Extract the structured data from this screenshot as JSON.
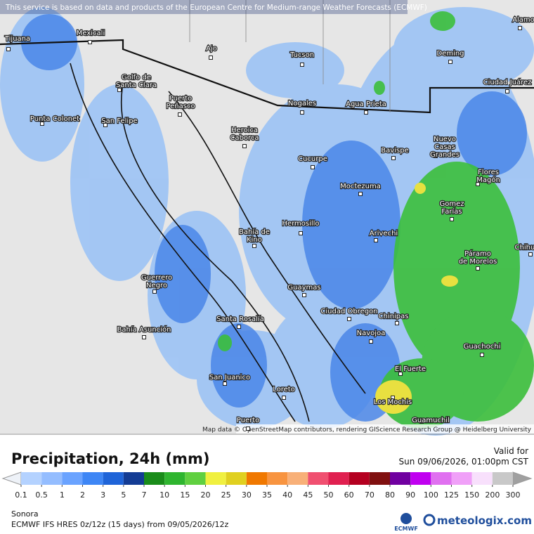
{
  "notice": "This service is based on data and products of the European Centre for Medium-range Weather Forecasts (ECMWF)",
  "attribution": "Map data © OpenStreetMap contributors, rendering GIScience Research Group @ Heidelberg University",
  "cities": [
    {
      "lines": [
        "Tijuana"
      ]
    },
    {
      "lines": [
        "Mexicali"
      ]
    },
    {
      "lines": [
        "Ajo"
      ]
    },
    {
      "lines": [
        "Tucson"
      ]
    },
    {
      "lines": [
        "Deming"
      ]
    },
    {
      "lines": [
        "Alamo"
      ]
    },
    {
      "lines": [
        "Ciudad Juárez"
      ]
    },
    {
      "lines": [
        "Golfo de",
        "Santa Clara"
      ]
    },
    {
      "lines": [
        "Puerto",
        "Peñasco"
      ]
    },
    {
      "lines": [
        "Nogales"
      ]
    },
    {
      "lines": [
        "Agua Prieta"
      ]
    },
    {
      "lines": [
        "Punta Colonet"
      ]
    },
    {
      "lines": [
        "San Felipe"
      ]
    },
    {
      "lines": [
        "Heroica",
        "Caborca"
      ]
    },
    {
      "lines": [
        "Bavispe"
      ]
    },
    {
      "lines": [
        "Nuevo",
        "Casas",
        "Grandes"
      ]
    },
    {
      "lines": [
        "Cucurpe"
      ]
    },
    {
      "lines": [
        "Flores",
        "Magón"
      ]
    },
    {
      "lines": [
        "Moctezuma"
      ]
    },
    {
      "lines": [
        "Gomez",
        "Farías"
      ]
    },
    {
      "lines": [
        "Hermosillo"
      ]
    },
    {
      "lines": [
        "Bahía de",
        "Kino"
      ]
    },
    {
      "lines": [
        "Arivechi"
      ]
    },
    {
      "lines": [
        "Chihua"
      ]
    },
    {
      "lines": [
        "Páramo",
        "de Morelos"
      ]
    },
    {
      "lines": [
        "Guerrero",
        "Negro"
      ]
    },
    {
      "lines": [
        "Guaymas"
      ]
    },
    {
      "lines": [
        "Ciudad Obregon"
      ]
    },
    {
      "lines": [
        "Chinipas"
      ]
    },
    {
      "lines": [
        "Santa Rosalía"
      ]
    },
    {
      "lines": [
        "Bahía Asunción"
      ]
    },
    {
      "lines": [
        "Navojoa"
      ]
    },
    {
      "lines": [
        "Guachochi"
      ]
    },
    {
      "lines": [
        "El Fuerte"
      ]
    },
    {
      "lines": [
        "San Juanico"
      ]
    },
    {
      "lines": [
        "Loreto"
      ]
    },
    {
      "lines": [
        "Los Mochis"
      ]
    },
    {
      "lines": [
        "Guamuchil"
      ]
    },
    {
      "lines": [
        "Puerto"
      ]
    }
  ],
  "legend": {
    "title": "Precipitation, 24h (mm)",
    "valid_label": "Valid for",
    "valid_time": "Sun 09/06/2026, 01:00pm CST",
    "ticks": [
      0.1,
      0.5,
      1,
      2,
      3,
      5,
      7,
      10,
      15,
      20,
      25,
      30,
      35,
      40,
      45,
      50,
      60,
      70,
      80,
      90,
      100,
      125,
      150,
      200,
      300
    ],
    "colors": [
      "#b4d2ff",
      "#94bdff",
      "#6aa3ff",
      "#3e86f5",
      "#1f64d8",
      "#143c94",
      "#1a8c1a",
      "#2fb52f",
      "#60d040",
      "#f0f040",
      "#e0d020",
      "#f07800",
      "#f89440",
      "#f8b078",
      "#f05070",
      "#e02050",
      "#b40020",
      "#801010",
      "#7000a0",
      "#c000f0",
      "#e070f0",
      "#f0a0f8",
      "#f8e0fc",
      "#c8c8c8"
    ],
    "under_color": "#eef2f8",
    "over_color": "#a0a0a0"
  },
  "footer": {
    "region": "Sonora",
    "model": "ECMWF IFS HRES 0z/12z (15 days) from 09/05/2026/12z",
    "logo_ecmwf": "ECMWF",
    "logo_meteologix": "meteologix.com"
  }
}
